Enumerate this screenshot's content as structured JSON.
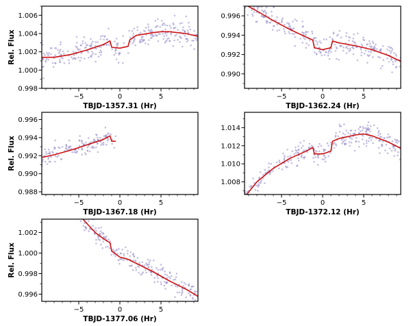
{
  "chart_data": [
    {
      "type": "scatter",
      "xlabel": "TBJD-1357.31 (Hr)",
      "ylabel": "Rel. Flux",
      "xlim": [
        -9.5,
        9.5
      ],
      "ylim": [
        0.998,
        1.007
      ],
      "xticks": [
        -5,
        0,
        5
      ],
      "xtick_labels": [
        "−5",
        "0",
        "5"
      ],
      "yticks": [
        0.998,
        1.0,
        1.002,
        1.004,
        1.006
      ],
      "ytick_labels": [
        "0.998",
        "1.000",
        "1.002",
        "1.004",
        "1.006"
      ],
      "series": [
        {
          "kind": "model",
          "x": [
            -9.5,
            -8,
            -6,
            -4,
            -2,
            -1.2,
            -1.0,
            0,
            1.0,
            1.2,
            2,
            4,
            5,
            6,
            8,
            9.5
          ],
          "y": [
            1.0014,
            1.0014,
            1.0017,
            1.0022,
            1.0028,
            1.0032,
            1.0025,
            1.0024,
            1.0026,
            1.0033,
            1.0038,
            1.0041,
            1.0042,
            1.0042,
            1.004,
            1.0037
          ]
        },
        {
          "kind": "data",
          "scatter": 0.0012
        }
      ]
    },
    {
      "type": "scatter",
      "xlabel": "TBJD-1362.24 (Hr)",
      "ylabel": "",
      "xlim": [
        -9.5,
        9.5
      ],
      "ylim": [
        0.9885,
        0.997
      ],
      "xticks": [
        -5,
        0,
        5
      ],
      "xtick_labels": [
        "−5",
        "0",
        "5"
      ],
      "yticks": [
        0.99,
        0.992,
        0.994,
        0.996
      ],
      "ytick_labels": [
        "0.990",
        "0.992",
        "0.994",
        "0.996"
      ],
      "series": [
        {
          "kind": "model",
          "x": [
            -9.5,
            -8,
            -6,
            -4,
            -2,
            -1.2,
            -1.0,
            0,
            1.0,
            1.2,
            2,
            4,
            6,
            8,
            9.5
          ],
          "y": [
            0.9972,
            0.9965,
            0.9955,
            0.9946,
            0.9938,
            0.9935,
            0.9927,
            0.9925,
            0.9927,
            0.9934,
            0.9932,
            0.9929,
            0.9925,
            0.9919,
            0.9913
          ]
        },
        {
          "kind": "data",
          "scatter": 0.0011
        }
      ]
    },
    {
      "type": "scatter",
      "xlabel": "TBJD-1367.18 (Hr)",
      "ylabel": "Rel. Flux",
      "xlim": [
        -9.5,
        9.5
      ],
      "ylim": [
        0.9877,
        0.9968
      ],
      "xticks": [
        -5,
        0,
        5
      ],
      "xtick_labels": [
        "−5",
        "0",
        "5"
      ],
      "yticks": [
        0.988,
        0.99,
        0.992,
        0.994,
        0.996
      ],
      "ytick_labels": [
        "0.988",
        "0.990",
        "0.992",
        "0.994",
        "0.996"
      ],
      "series": [
        {
          "kind": "model",
          "x": [
            -9.5,
            -8,
            -6,
            -4,
            -2,
            -1.2,
            -1.0,
            -0.5
          ],
          "y": [
            0.9918,
            0.9921,
            0.9926,
            0.9932,
            0.9938,
            0.9942,
            0.9936,
            0.9936
          ]
        },
        {
          "kind": "data",
          "scatter": 0.0009,
          "x_max": -0.5
        }
      ]
    },
    {
      "type": "scatter",
      "xlabel": "TBJD-1372.12 (Hr)",
      "ylabel": "",
      "xlim": [
        -9.5,
        9.5
      ],
      "ylim": [
        1.0066,
        1.0157
      ],
      "xticks": [
        -5,
        0,
        5
      ],
      "xtick_labels": [
        "−5",
        "0",
        "5"
      ],
      "yticks": [
        1.008,
        1.01,
        1.012,
        1.014
      ],
      "ytick_labels": [
        "1.008",
        "1.010",
        "1.012",
        "1.014"
      ],
      "series": [
        {
          "kind": "model",
          "x": [
            -9.5,
            -8,
            -6,
            -4,
            -2,
            -1.2,
            -1.0,
            0,
            1.0,
            1.2,
            2,
            4,
            5,
            6,
            8,
            9.5
          ],
          "y": [
            1.0063,
            1.008,
            1.0095,
            1.0106,
            1.0114,
            1.0118,
            1.0111,
            1.0111,
            1.0114,
            1.0125,
            1.0128,
            1.0132,
            1.0133,
            1.0131,
            1.0124,
            1.0117
          ]
        },
        {
          "kind": "data",
          "scatter": 0.0011
        }
      ]
    },
    {
      "type": "scatter",
      "xlabel": "TBJD-1377.06 (Hr)",
      "ylabel": "Rel. Flux",
      "xlim": [
        -9.5,
        9.5
      ],
      "ylim": [
        0.9953,
        1.0033
      ],
      "xticks": [
        -5,
        0,
        5
      ],
      "xtick_labels": [
        "−5",
        "0",
        "5"
      ],
      "yticks": [
        0.996,
        0.998,
        1.0,
        1.002
      ],
      "ytick_labels": [
        "0.996",
        "0.998",
        "1.000",
        "1.002"
      ],
      "series": [
        {
          "kind": "model",
          "x": [
            -4.5,
            -3,
            -2,
            -1.2,
            -1.0,
            0,
            1.0,
            1.2,
            2,
            4,
            6,
            8,
            9.5
          ],
          "y": [
            1.0033,
            1.002,
            1.0014,
            1.001,
            1.0002,
            0.9996,
            0.9994,
            0.9993,
            0.999,
            0.9982,
            0.9973,
            0.9965,
            0.9958
          ]
        },
        {
          "kind": "data",
          "scatter": 0.0009,
          "x_min": -4.8
        }
      ]
    }
  ]
}
